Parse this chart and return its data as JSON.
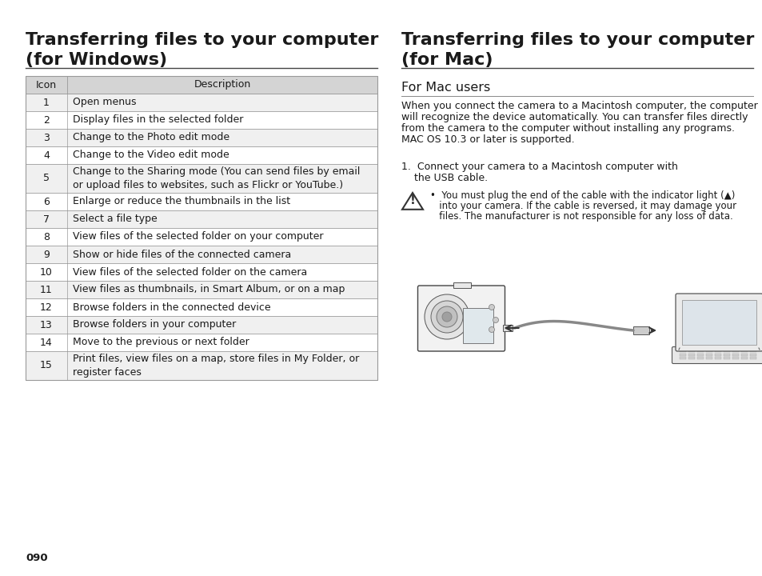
{
  "bg_color": "#ffffff",
  "left_title_line1": "Transferring files to your computer",
  "left_title_line2": "(for Windows)",
  "right_title_line1": "Transferring files to your computer",
  "right_title_line2": "(for Mac)",
  "table_header": [
    "Icon",
    "Description"
  ],
  "table_rows": [
    [
      "1",
      "Open menus"
    ],
    [
      "2",
      "Display files in the selected folder"
    ],
    [
      "3",
      "Change to the Photo edit mode"
    ],
    [
      "4",
      "Change to the Video edit mode"
    ],
    [
      "5",
      "Change to the Sharing mode (You can send files by email\nor upload files to websites, such as Flickr or YouTube.)"
    ],
    [
      "6",
      "Enlarge or reduce the thumbnails in the list"
    ],
    [
      "7",
      "Select a file type"
    ],
    [
      "8",
      "View files of the selected folder on your computer"
    ],
    [
      "9",
      "Show or hide files of the connected camera"
    ],
    [
      "10",
      "View files of the selected folder on the camera"
    ],
    [
      "11",
      "View files as thumbnails, in Smart Album, or on a map"
    ],
    [
      "12",
      "Browse folders in the connected device"
    ],
    [
      "13",
      "Browse folders in your computer"
    ],
    [
      "14",
      "Move to the previous or next folder"
    ],
    [
      "15",
      "Print files, view files on a map, store files in My Folder, or\nregister faces"
    ]
  ],
  "mac_subsection": "For Mac users",
  "mac_body_lines": [
    "When you connect the camera to a Macintosh computer, the computer",
    "will recognize the device automatically. You can transfer files directly",
    "from the camera to the computer without installing any programs.",
    "MAC OS 10.3 or later is supported."
  ],
  "mac_step_line1": "1.  Connect your camera to a Macintosh computer with",
  "mac_step_line2": "    the USB cable.",
  "mac_warning_lines": [
    "•  You must plug the end of the cable with the indicator light (▲)",
    "   into your camera. If the cable is reversed, it may damage your",
    "   files. The manufacturer is not responsible for any loss of data."
  ],
  "page_number": "090",
  "header_bg": "#d4d4d4",
  "row_alt_bg": "#f0f0f0",
  "table_border_color": "#999999",
  "text_color": "#1a1a1a",
  "title_fontsize": 16,
  "subtitle_fontsize": 11,
  "body_fontsize": 9,
  "table_fontsize": 9
}
